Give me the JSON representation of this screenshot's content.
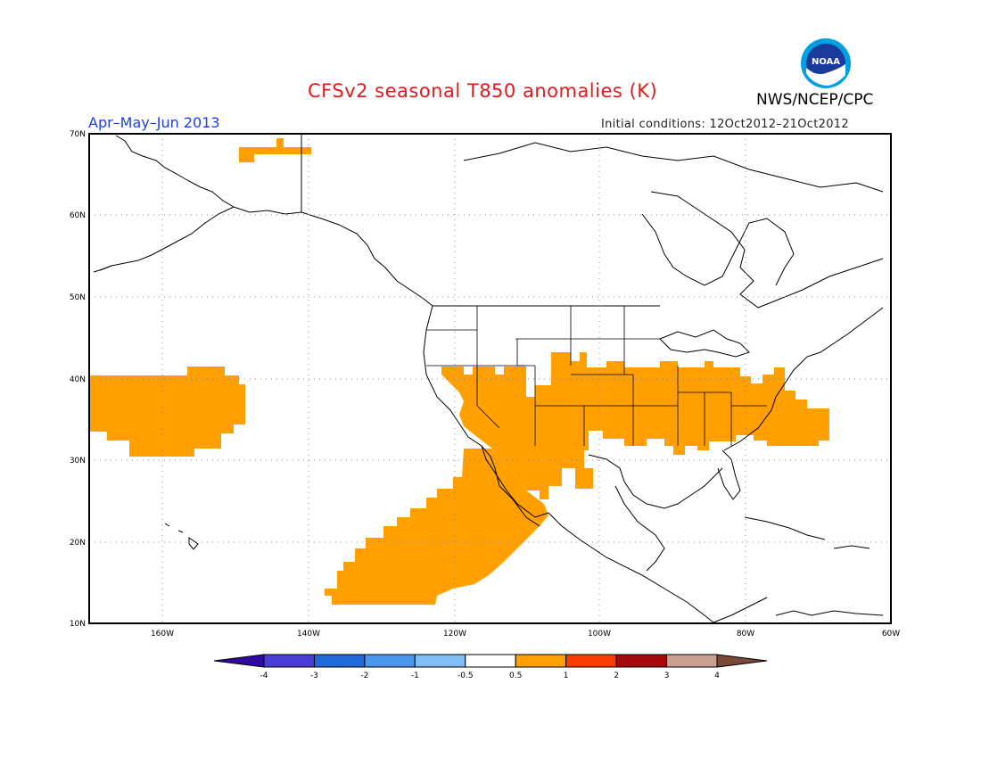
{
  "header": {
    "title": "CFSv2 seasonal T850 anomalies (K)",
    "agency": "NWS/NCEP/CPC",
    "period": "Apr–May–Jun 2013",
    "initial_conditions": "Initial conditions: 12Oct2012–21Oct2012",
    "logo_text": "NOAA"
  },
  "map": {
    "projection": "lat-lon",
    "lon_range": [
      -172,
      -60
    ],
    "lat_range": [
      10,
      70
    ],
    "lat_labels": [
      "10N",
      "20N",
      "30N",
      "40N",
      "50N",
      "60N",
      "70N"
    ],
    "lon_labels": [
      "160W",
      "140W",
      "120W",
      "100W",
      "80W",
      "60W"
    ],
    "grid": "dotted",
    "shaded_category": "0.5 to 1 K",
    "shade_color": "#ffa000"
  },
  "colorbar": {
    "ticks": [
      "-4",
      "-3",
      "-2",
      "-1",
      "-0.5",
      "0.5",
      "1",
      "2",
      "3",
      "4"
    ],
    "colors": [
      "#2f0aa0",
      "#4a3cd6",
      "#1f6ad8",
      "#4a96ec",
      "#80bef5",
      "#ffffff",
      "#ffa000",
      "#ff3c00",
      "#a50a0a",
      "#c8a090",
      "#7a4a38"
    ]
  }
}
